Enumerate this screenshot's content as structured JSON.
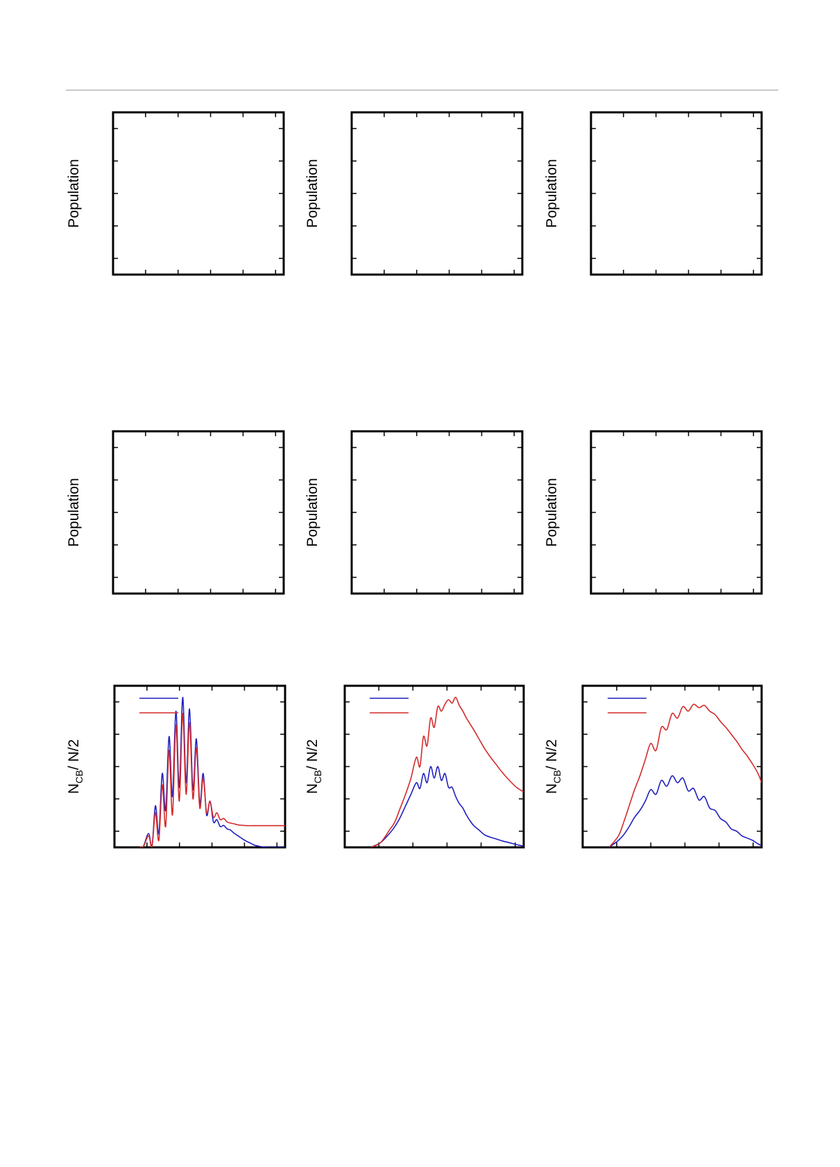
{
  "colors": {
    "series_blue": "#1f1fbf",
    "series_red": "#d42a2a",
    "frame": "#000000"
  },
  "chart_data": [
    {
      "type": "line",
      "ylabel": "Population",
      "series": []
    },
    {
      "type": "line",
      "ylabel": "Population",
      "series": []
    },
    {
      "type": "line",
      "ylabel": "Population",
      "series": []
    },
    {
      "type": "line",
      "ylabel": "Population",
      "series": []
    },
    {
      "type": "line",
      "ylabel": "Population",
      "series": []
    },
    {
      "type": "line",
      "ylabel": "Population",
      "series": []
    },
    {
      "type": "line",
      "ylabel_main": "N",
      "ylabel_sub": "CB",
      "ylabel_rest": "/ N/2",
      "legend_placement": "top-left",
      "xlim": [
        0,
        100
      ],
      "ylim": [
        0,
        7
      ],
      "series": [
        {
          "color": "#1f1fbf",
          "x": [
            15,
            17,
            20,
            22,
            24,
            26,
            28,
            30,
            32,
            34,
            36,
            38,
            40,
            42,
            44,
            46,
            48,
            50,
            52,
            54,
            56,
            58,
            60,
            62,
            64,
            66,
            68,
            70,
            72,
            74,
            76,
            78,
            80,
            82,
            84,
            86,
            88,
            90,
            92,
            94,
            96,
            98,
            100
          ],
          "y": [
            0.02,
            0.05,
            0.6,
            0.05,
            1.8,
            0.6,
            3.2,
            1.6,
            4.8,
            2.2,
            5.9,
            2.6,
            6.5,
            2.8,
            6.0,
            2.5,
            4.7,
            1.9,
            3.2,
            1.4,
            2.0,
            1.1,
            1.2,
            0.9,
            0.95,
            0.8,
            0.75,
            0.62,
            0.52,
            0.42,
            0.32,
            0.24,
            0.17,
            0.1,
            0.06,
            0.03,
            0.01,
            0.0,
            0.0,
            0.0,
            0.0,
            0.0,
            0.0
          ]
        },
        {
          "color": "#d42a2a",
          "x": [
            15,
            17,
            20,
            22,
            24,
            26,
            28,
            30,
            32,
            34,
            36,
            38,
            40,
            42,
            44,
            46,
            48,
            50,
            52,
            54,
            56,
            58,
            60,
            62,
            64,
            66,
            68,
            70,
            72,
            74,
            76,
            78,
            80,
            82,
            84,
            86,
            88,
            90,
            92,
            94,
            96,
            98,
            100
          ],
          "y": [
            0.02,
            0.04,
            0.5,
            0.03,
            1.5,
            0.3,
            2.7,
            0.9,
            4.2,
            1.4,
            5.3,
            2.0,
            5.8,
            2.3,
            5.4,
            2.1,
            4.3,
            1.7,
            3.0,
            1.5,
            2.0,
            1.3,
            1.5,
            1.2,
            1.25,
            1.1,
            1.05,
            1.02,
            0.98,
            0.96,
            0.95,
            0.94,
            0.94,
            0.94,
            0.94,
            0.94,
            0.94,
            0.94,
            0.94,
            0.94,
            0.94,
            0.94,
            0.94
          ]
        }
      ]
    },
    {
      "type": "line",
      "ylabel_main": "N",
      "ylabel_sub": "CB",
      "ylabel_rest": "/ N/2",
      "legend_placement": "top-left",
      "xlim": [
        0,
        100
      ],
      "ylim": [
        0,
        7
      ],
      "series": [
        {
          "color": "#1f1fbf",
          "x": [
            15,
            20,
            25,
            28,
            31,
            34,
            37,
            40,
            42,
            44,
            46,
            48,
            50,
            52,
            54,
            56,
            58,
            60,
            62,
            64,
            66,
            68,
            70,
            72,
            75,
            78,
            81,
            84,
            88,
            92,
            96,
            100
          ],
          "y": [
            0.02,
            0.2,
            0.6,
            0.9,
            1.3,
            1.8,
            2.3,
            2.8,
            2.55,
            3.2,
            2.8,
            3.5,
            3.0,
            3.5,
            2.9,
            3.2,
            2.6,
            2.6,
            2.2,
            1.9,
            1.7,
            1.4,
            1.15,
            0.95,
            0.75,
            0.55,
            0.45,
            0.38,
            0.28,
            0.2,
            0.12,
            0.05
          ]
        },
        {
          "color": "#d42a2a",
          "x": [
            15,
            20,
            25,
            28,
            31,
            34,
            37,
            40,
            42,
            44,
            46,
            48,
            50,
            52,
            54,
            56,
            58,
            60,
            62,
            64,
            66,
            68,
            70,
            72,
            75,
            78,
            81,
            84,
            88,
            92,
            96,
            100
          ],
          "y": [
            0.02,
            0.2,
            0.75,
            1.1,
            1.7,
            2.3,
            3.0,
            3.9,
            3.5,
            4.8,
            4.4,
            5.6,
            5.2,
            6.1,
            5.9,
            6.2,
            6.4,
            6.25,
            6.5,
            6.15,
            5.9,
            5.6,
            5.35,
            5.1,
            4.7,
            4.3,
            3.95,
            3.65,
            3.25,
            2.9,
            2.6,
            2.4
          ]
        }
      ]
    },
    {
      "type": "line",
      "ylabel_main": "N",
      "ylabel_sub": "CB",
      "ylabel_rest": "/ N/2",
      "legend_placement": "top-left",
      "xlim": [
        0,
        100
      ],
      "ylim": [
        0,
        7
      ],
      "series": [
        {
          "color": "#1f1fbf",
          "x": [
            15,
            20,
            23,
            26,
            29,
            32,
            35,
            38,
            41,
            44,
            47,
            50,
            53,
            56,
            59,
            62,
            65,
            68,
            71,
            74,
            77,
            80,
            83,
            86,
            89,
            92,
            95,
            98,
            100
          ],
          "y": [
            0.02,
            0.3,
            0.55,
            0.9,
            1.3,
            1.6,
            2.0,
            2.5,
            2.3,
            2.9,
            2.65,
            3.1,
            2.8,
            3.0,
            2.45,
            2.55,
            2.05,
            2.2,
            1.7,
            1.6,
            1.25,
            1.1,
            0.8,
            0.7,
            0.5,
            0.4,
            0.3,
            0.15,
            0.08
          ]
        },
        {
          "color": "#d42a2a",
          "x": [
            15,
            20,
            23,
            26,
            29,
            32,
            35,
            38,
            41,
            44,
            47,
            50,
            53,
            56,
            59,
            62,
            65,
            68,
            71,
            74,
            77,
            80,
            83,
            86,
            89,
            92,
            95,
            98,
            100
          ],
          "y": [
            0.02,
            0.5,
            1.1,
            1.8,
            2.5,
            3.1,
            3.8,
            4.5,
            4.2,
            5.2,
            5.1,
            5.8,
            5.6,
            6.1,
            5.9,
            6.2,
            6.05,
            6.15,
            5.9,
            5.75,
            5.45,
            5.2,
            4.9,
            4.6,
            4.25,
            3.95,
            3.6,
            3.2,
            2.8
          ]
        }
      ]
    }
  ]
}
